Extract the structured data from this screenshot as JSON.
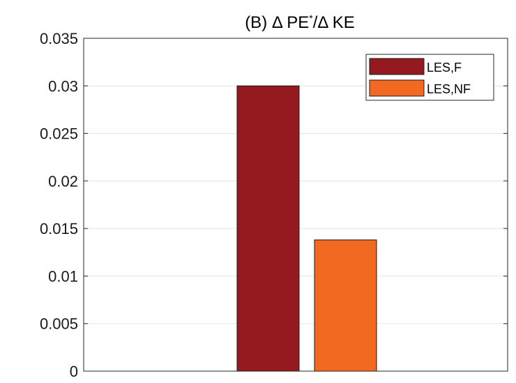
{
  "chart_data": {
    "type": "bar",
    "title": {
      "prefix": "(B)  ",
      "delta1": "Δ",
      "term1": " PE",
      "superscript": "*",
      "slash": "/",
      "delta2": "Δ",
      "term2": " KE"
    },
    "xlabel": "",
    "ylabel": "",
    "ylim": [
      0,
      0.035
    ],
    "yticks": [
      "0",
      "0.005",
      "0.01",
      "0.015",
      "0.02",
      "0.025",
      "0.03",
      "0.035"
    ],
    "grid": true,
    "legend_position": "top-right",
    "series": [
      {
        "name": "LES,F",
        "values": [
          0.03
        ],
        "color": "#951a1f"
      },
      {
        "name": "LES,NF",
        "values": [
          0.0138
        ],
        "color": "#f26a22"
      }
    ]
  }
}
